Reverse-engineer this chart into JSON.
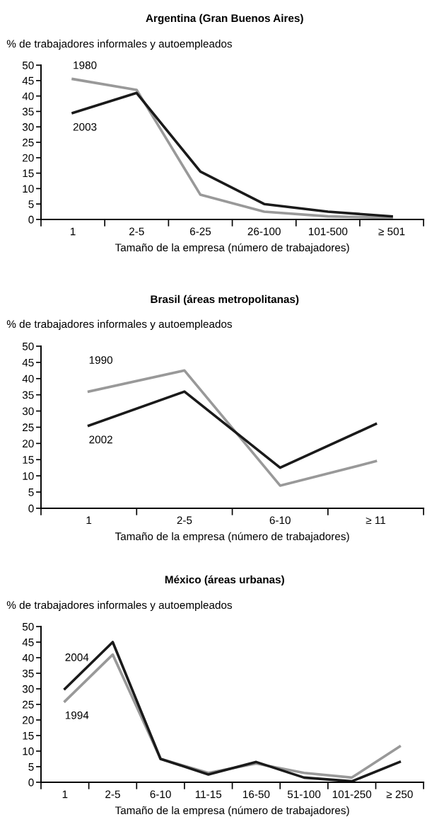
{
  "chart_data": [
    {
      "type": "line",
      "title": "Argentina (Gran Buenos Aires)",
      "ylabel": "% de trabajadores informales y autoempleados",
      "xlabel": "Tamaño de la empresa (número de trabajadores)",
      "categories": [
        "1",
        "2-5",
        "6-25",
        "26-100",
        "101-500",
        "≥ 501"
      ],
      "ylim": [
        0,
        50
      ],
      "yticks": [
        0,
        5,
        10,
        15,
        20,
        25,
        30,
        35,
        40,
        45,
        50
      ],
      "grid": false,
      "legend": false,
      "marker": "none",
      "line_style": "solid",
      "series": [
        {
          "name": "1980",
          "color": "#999999",
          "values": [
            45.5,
            42,
            8,
            2.5,
            1,
            0.5
          ]
        },
        {
          "name": "2003",
          "color": "#1a1a1a",
          "values": [
            34.5,
            41,
            15.5,
            5,
            2.5,
            1
          ]
        }
      ]
    },
    {
      "type": "line",
      "title": "Brasil (áreas metropolitanas)",
      "ylabel": "% de trabajadores informales y autoempleados",
      "xlabel": "Tamaño de la empresa (número de trabajadores)",
      "categories": [
        "1",
        "2-5",
        "6-10",
        "≥ 11"
      ],
      "ylim": [
        0,
        50
      ],
      "yticks": [
        0,
        5,
        10,
        15,
        20,
        25,
        30,
        35,
        40,
        45,
        50
      ],
      "grid": false,
      "legend": false,
      "marker": "none",
      "line_style": "solid",
      "series": [
        {
          "name": "1990",
          "color": "#999999",
          "values": [
            36,
            42.5,
            7,
            14.5
          ]
        },
        {
          "name": "2002",
          "color": "#1a1a1a",
          "values": [
            25.5,
            36,
            12.5,
            26
          ]
        }
      ]
    },
    {
      "type": "line",
      "title": "México (áreas urbanas)",
      "ylabel": "% de trabajadores informales y autoempleados",
      "xlabel": "Tamaño de la empresa (número de trabajadores)",
      "categories": [
        "1",
        "2-5",
        "6-10",
        "11-15",
        "16-50",
        "51-100",
        "101-250",
        "≥ 250"
      ],
      "ylim": [
        0,
        50
      ],
      "yticks": [
        0,
        5,
        10,
        15,
        20,
        25,
        30,
        35,
        40,
        45,
        50
      ],
      "grid": false,
      "legend": false,
      "marker": "none",
      "line_style": "solid",
      "series": [
        {
          "name": "1994",
          "color": "#999999",
          "values": [
            26,
            41,
            7.5,
            3,
            6,
            3,
            1.5,
            11.5
          ]
        },
        {
          "name": "2004",
          "color": "#1a1a1a",
          "values": [
            30,
            45,
            7.5,
            2.5,
            6.5,
            1.5,
            0.3,
            6.5
          ]
        }
      ]
    }
  ]
}
